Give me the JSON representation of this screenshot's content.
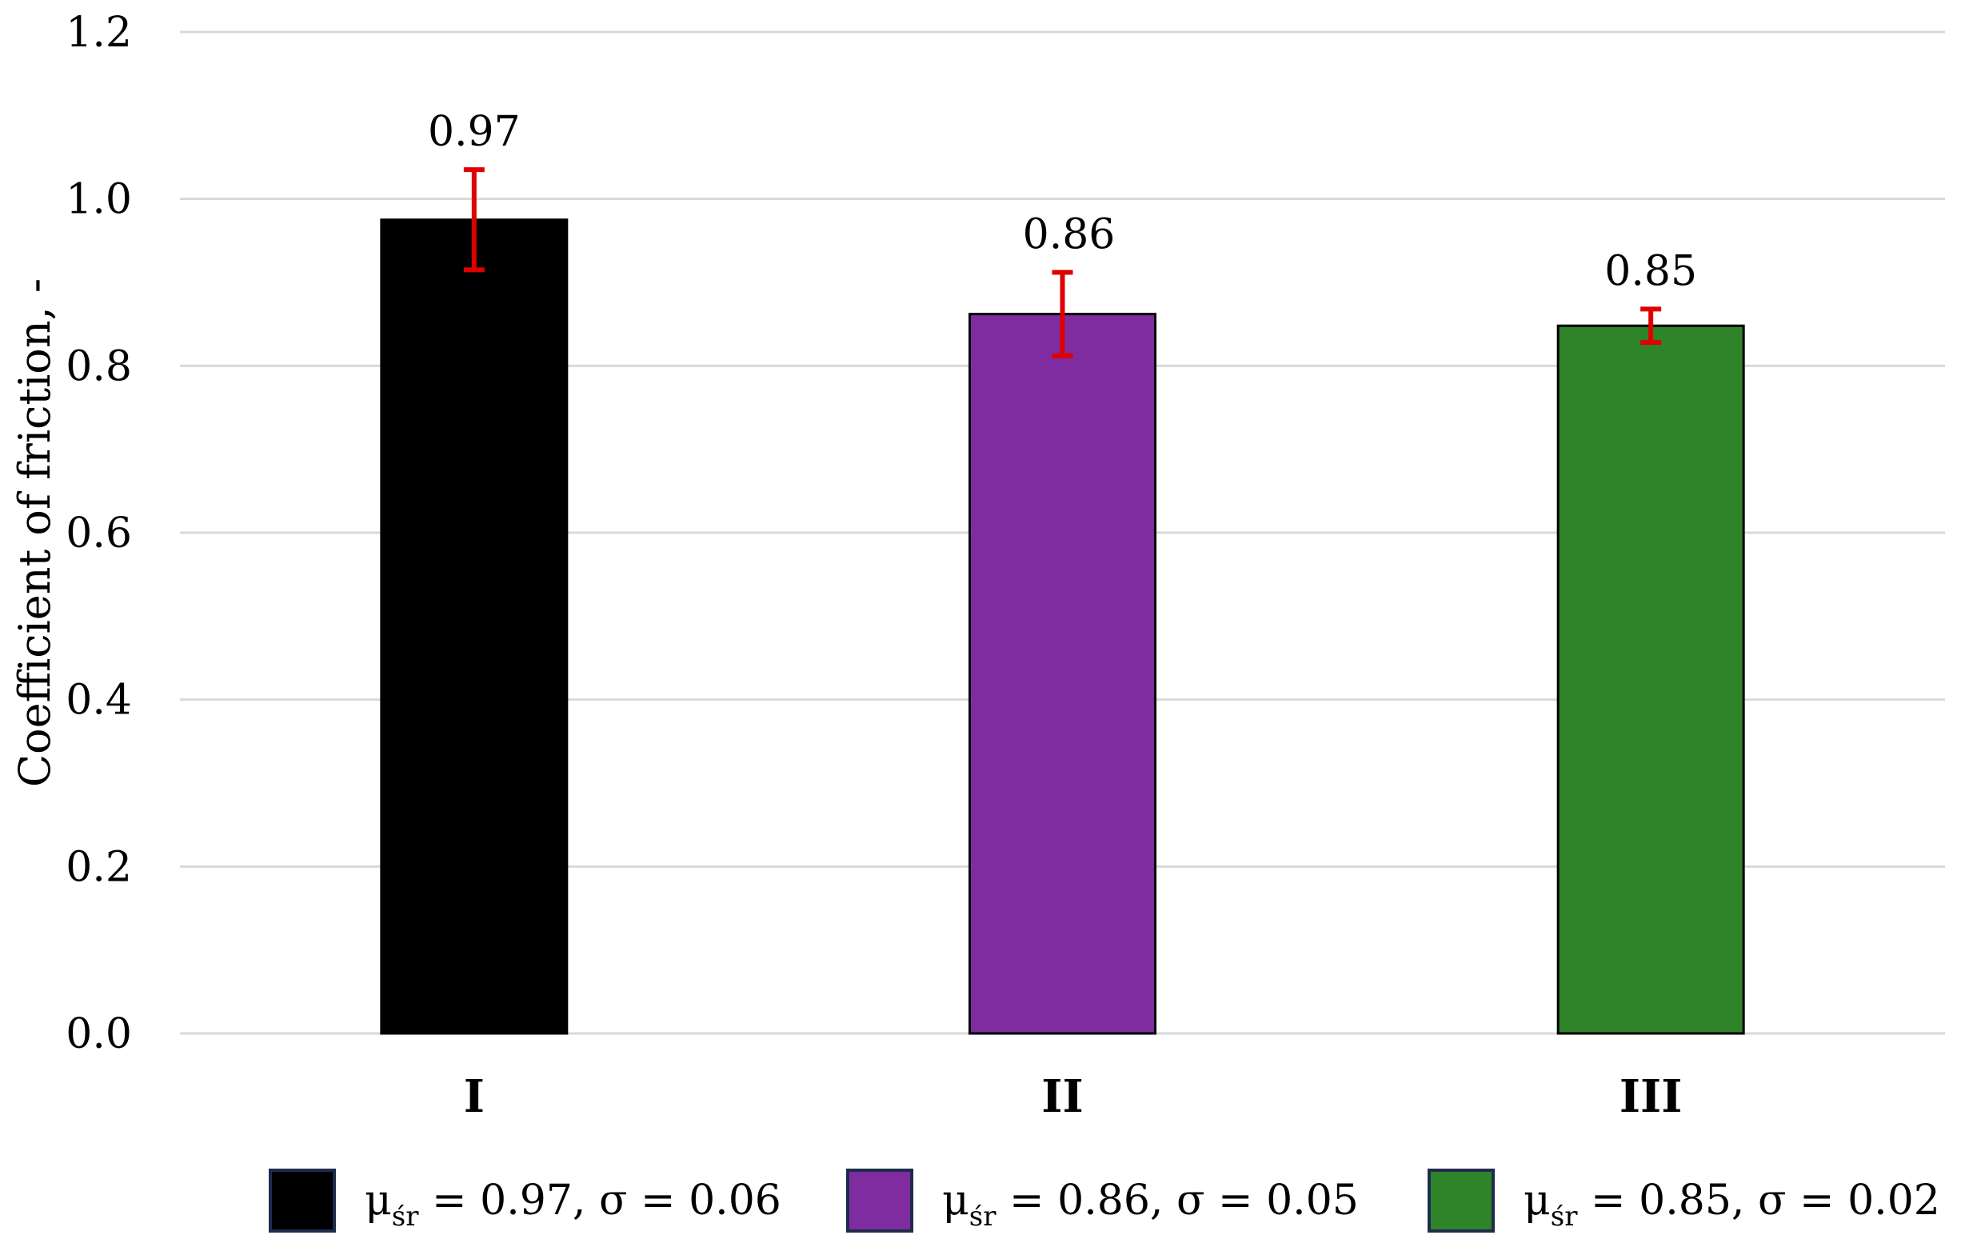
{
  "chart_data": {
    "type": "bar",
    "title": "",
    "xlabel": "",
    "ylabel": "Coefficient of friction, -",
    "ylim": [
      0,
      1.2
    ],
    "yticks": [
      0.0,
      0.2,
      0.4,
      0.6,
      0.8,
      1.0,
      1.2
    ],
    "ytick_labels": [
      "0.0",
      "0.2",
      "0.4",
      "0.6",
      "0.8",
      "1.0",
      "1.2"
    ],
    "grid": true,
    "legend_position": "bottom",
    "categories": [
      "I",
      "II",
      "III"
    ],
    "values": [
      0.975,
      0.862,
      0.848
    ],
    "error": [
      0.06,
      0.05,
      0.02
    ],
    "data_labels": [
      "0.97",
      "0.86",
      "0.85"
    ],
    "colors": [
      "#000000",
      "#7E2CA0",
      "#2F8329"
    ],
    "error_bar_color": "#E00000",
    "legend": [
      {
        "symbol": "μ",
        "subscript": "śr",
        "text": " = 0.97, σ = 0.06",
        "color": "#000000"
      },
      {
        "symbol": "μ",
        "subscript": "śr",
        "text": " = 0.86, σ = 0.05",
        "color": "#7E2CA0"
      },
      {
        "symbol": "μ",
        "subscript": "śr",
        "text": " = 0.85, σ = 0.02",
        "color": "#2F8329"
      }
    ]
  }
}
